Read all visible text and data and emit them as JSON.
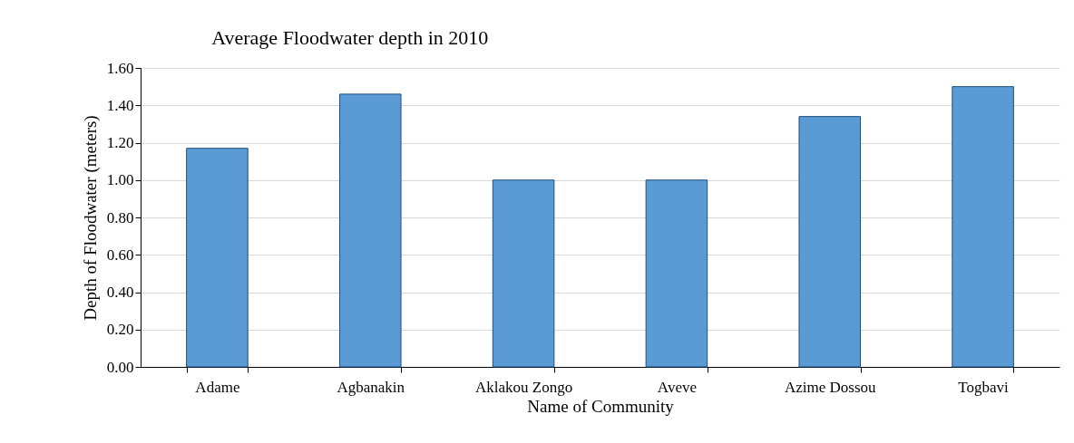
{
  "chart_data": {
    "type": "bar",
    "title": "Average Floodwater depth in 2010",
    "xlabel": "Name of Community",
    "ylabel": "Depth of Floodwater (meters)",
    "categories": [
      "Adame",
      "Agbanakin",
      "Aklakou Zongo",
      "Aveve",
      "Azime Dossou",
      "Togbavi"
    ],
    "values": [
      1.17,
      1.46,
      1.0,
      1.0,
      1.34,
      1.5
    ],
    "color": "#5b9bd5",
    "ylim": [
      0,
      1.6
    ],
    "yticks": [
      {
        "value": 0,
        "label": "0.00"
      },
      {
        "value": 0.2,
        "label": "0.20"
      },
      {
        "value": 0.4,
        "label": "0.40"
      },
      {
        "value": 0.6,
        "label": "0.60"
      },
      {
        "value": 0.8,
        "label": "0.80"
      },
      {
        "value": 1.0,
        "label": "1.00"
      },
      {
        "value": 1.2,
        "label": "1.20"
      },
      {
        "value": 1.4,
        "label": "1.40"
      },
      {
        "value": 1.6,
        "label": "1.60"
      }
    ],
    "grid": "y"
  }
}
